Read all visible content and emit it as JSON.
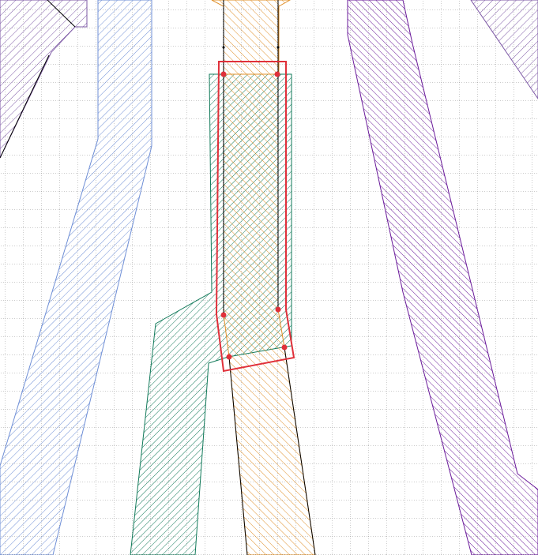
{
  "colors": {
    "background": "#ffffff",
    "grid": "#9a9a9a",
    "purple_left": "#7e5aa6",
    "blue": "#6f8fd6",
    "green": "#127a5a",
    "orange": "#e0902a",
    "purple_right": "#6a1a9a",
    "selection": "#e0303a",
    "guide": "#000000"
  },
  "selection": {
    "vertex_count": 6
  },
  "grid": {
    "visible": true,
    "style": "dotted"
  }
}
